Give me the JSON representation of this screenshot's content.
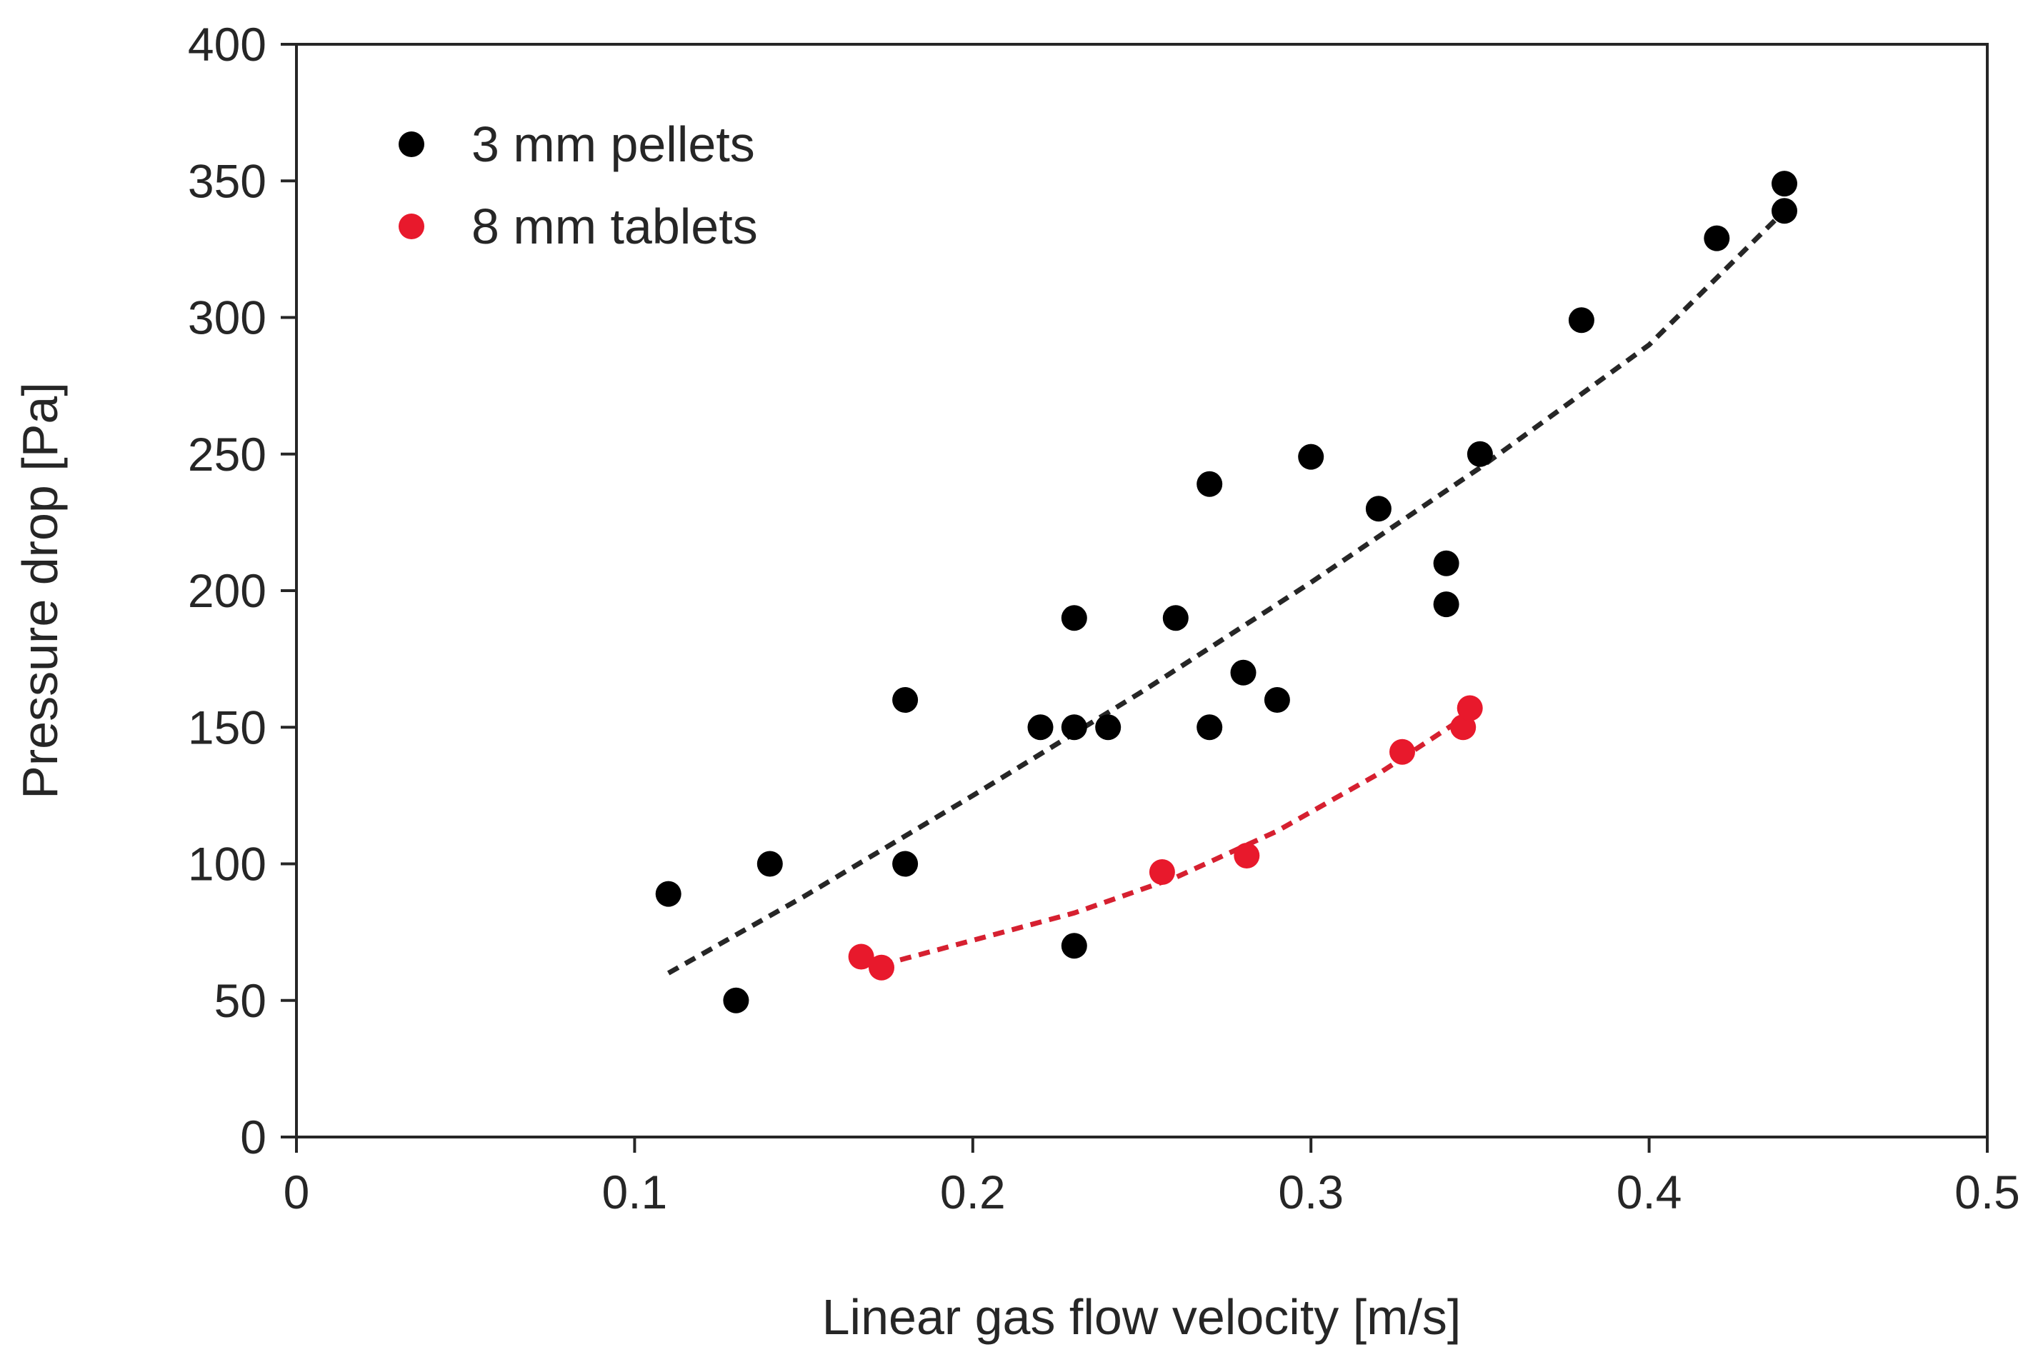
{
  "chart_data": {
    "type": "scatter",
    "title": "",
    "xlabel": "Linear gas flow velocity [m/s]",
    "ylabel": "Pressure drop [Pa]",
    "xlim": [
      0,
      0.5
    ],
    "ylim": [
      0,
      400
    ],
    "xticks": [
      0,
      0.1,
      0.2,
      0.3,
      0.4,
      0.5
    ],
    "xtick_labels": [
      "0",
      "0.1",
      "0.2",
      "0.3",
      "0.4",
      "0.5"
    ],
    "yticks": [
      0,
      50,
      100,
      150,
      200,
      250,
      300,
      350,
      400
    ],
    "ytick_labels": [
      "0",
      "50",
      "100",
      "150",
      "200",
      "250",
      "300",
      "350",
      "400"
    ],
    "grid": false,
    "legend_position": "top-left",
    "series": [
      {
        "name": "3 mm pellets",
        "color": "#000000",
        "points": [
          [
            0.11,
            89
          ],
          [
            0.13,
            50
          ],
          [
            0.14,
            100
          ],
          [
            0.18,
            160
          ],
          [
            0.18,
            100
          ],
          [
            0.22,
            150
          ],
          [
            0.23,
            190
          ],
          [
            0.23,
            150
          ],
          [
            0.23,
            70
          ],
          [
            0.24,
            150
          ],
          [
            0.26,
            190
          ],
          [
            0.27,
            239
          ],
          [
            0.27,
            150
          ],
          [
            0.28,
            170
          ],
          [
            0.29,
            160
          ],
          [
            0.3,
            249
          ],
          [
            0.32,
            230
          ],
          [
            0.34,
            210
          ],
          [
            0.34,
            195
          ],
          [
            0.35,
            250
          ],
          [
            0.38,
            299
          ],
          [
            0.42,
            329
          ],
          [
            0.44,
            349
          ],
          [
            0.44,
            339
          ]
        ],
        "fit": {
          "color": "#262626",
          "style": "dashed",
          "points": [
            [
              0.11,
              60
            ],
            [
              0.15,
              88
            ],
            [
              0.2,
              125
            ],
            [
              0.25,
              163
            ],
            [
              0.3,
              203
            ],
            [
              0.35,
              245
            ],
            [
              0.4,
              290
            ],
            [
              0.44,
              339
            ]
          ]
        }
      },
      {
        "name": "8 mm tablets",
        "color": "#e8192c",
        "points": [
          [
            0.167,
            66
          ],
          [
            0.173,
            62
          ],
          [
            0.256,
            97
          ],
          [
            0.281,
            103
          ],
          [
            0.327,
            141
          ],
          [
            0.345,
            150
          ],
          [
            0.347,
            157
          ]
        ],
        "fit": {
          "color": "#d62030",
          "style": "dashed",
          "points": [
            [
              0.173,
              63
            ],
            [
              0.2,
              72
            ],
            [
              0.23,
              82
            ],
            [
              0.26,
              95
            ],
            [
              0.29,
              112
            ],
            [
              0.32,
              133
            ],
            [
              0.347,
              155
            ]
          ]
        }
      }
    ]
  }
}
